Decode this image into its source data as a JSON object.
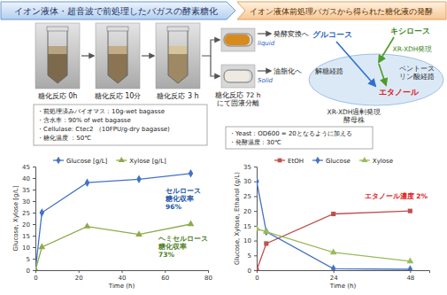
{
  "header": {
    "left": "イオン液体・超音波で前処理したバガスの酵素糖化",
    "right": "イオン液体前処理バガスから得られた糖化液の発酵"
  },
  "photos": {
    "captions": [
      "糖化反応 0h",
      "糖化反応 10分",
      "糖化反応 3 h"
    ],
    "liquid_label": "liquid",
    "solid_label": "Solid",
    "liquid_to": "発酵変換へ",
    "solid_to": "油脂化へ",
    "separation_caption": "糖化反応 72 h\nにて固液分離"
  },
  "conditions_left": [
    "・前処理済みバイオマス：10g-wet bagasse",
    "・含水率：90% of wet bagasse",
    "・Cellulase: Ctec2 （10FPU/g-dry bagasse)",
    "・糖化温度 ：50℃"
  ],
  "diagram": {
    "glucose": "グルコース",
    "xylose": "キシロース",
    "xr_xdh": "XR-XDH発現",
    "glycolysis": "解糖経路",
    "pentose": "ペントース\nリン酸経路",
    "ethanol": "エタノール",
    "strain": "XR-XDH過剰発現\n酵母株"
  },
  "conditions_right": [
    "・Yeast：OD600 = 20となるように加える",
    "・発酵温度：30℃"
  ],
  "chart_data": [
    {
      "type": "line",
      "x_label": "Time (h)",
      "y_label": "Glucose, Xylose [g/L]",
      "x": [
        0,
        3,
        24,
        48,
        72
      ],
      "xlim": [
        0,
        80
      ],
      "xticks": [
        0,
        20,
        40,
        60,
        80
      ],
      "ylim": [
        0,
        45
      ],
      "yticks": [
        0,
        5,
        10,
        15,
        20,
        25,
        30,
        35,
        40,
        45
      ],
      "grid": false,
      "legend": "top",
      "series": [
        {
          "name": "Glucose [g/L]",
          "color": "#4472c4",
          "marker": "diamond",
          "values": [
            0,
            25,
            38,
            39.5,
            42
          ]
        },
        {
          "name": "Xylose [g/L]",
          "color": "#8cab4a",
          "marker": "triangle",
          "values": [
            0,
            10,
            19,
            15.5,
            20
          ]
        }
      ],
      "annotations": [
        {
          "text": "セルロース\n糖化収率\n96%",
          "color": "#2456a8"
        },
        {
          "text": "ヘミセルロース\n糖化収率\n73%",
          "color": "#4f7f1f"
        }
      ]
    },
    {
      "type": "line",
      "x_label": "Time (h)",
      "y_label": "Glucose, Xylose, Ethanol (g/L)",
      "x": [
        0,
        3,
        24,
        48
      ],
      "xlim": [
        0,
        54
      ],
      "xticks": [
        0,
        24,
        48
      ],
      "ylim": [
        0,
        35
      ],
      "yticks": [
        0,
        5,
        10,
        15,
        20,
        25,
        30,
        35
      ],
      "grid": false,
      "legend": "top",
      "series": [
        {
          "name": "EtOH",
          "color": "#c0504d",
          "marker": "square",
          "values": [
            0,
            9,
            19,
            20
          ]
        },
        {
          "name": "Glucose",
          "color": "#4472c4",
          "marker": "diamond",
          "values": [
            30,
            13,
            0.5,
            0.3
          ]
        },
        {
          "name": "Xylose",
          "color": "#9bbb59",
          "marker": "triangle",
          "values": [
            14,
            13,
            6,
            3
          ]
        }
      ],
      "annotations": [
        {
          "text": "エタノール濃度 2%",
          "color": "#e02020"
        }
      ]
    }
  ]
}
